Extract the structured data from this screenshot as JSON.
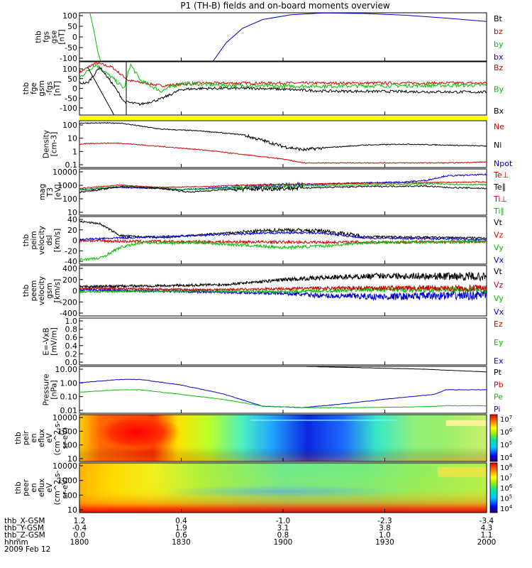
{
  "title": "P1 (TH-B) fields and on-board moments overview",
  "chart_data": {
    "type": "line",
    "title": "P1 (TH-B) fields and on-board moments overview",
    "time_ticks": [
      "1800",
      "1830",
      "1900",
      "1930",
      "2000"
    ],
    "panels": [
      {
        "id": "fgs",
        "ylabel": [
          "thb",
          "fgs",
          "gse",
          "[nT]"
        ],
        "ylim": [
          -100,
          100
        ],
        "log": false,
        "yticks": [
          "100",
          "50",
          "0",
          "-50",
          "-100"
        ],
        "legend": [
          {
            "label": "Bt",
            "color": "#000000"
          },
          {
            "label": "bz",
            "color": "#d00000"
          },
          {
            "label": "by",
            "color": "#00c000"
          },
          {
            "label": "bx",
            "color": "#0000d0"
          }
        ]
      },
      {
        "id": "fge",
        "ylabel": [
          "thb",
          "fge",
          "gsm",
          "-fgs",
          "[nT]"
        ],
        "ylim": [
          -125,
          100
        ],
        "log": false,
        "yticks": [
          "100",
          "50",
          "0",
          "-50",
          "-100"
        ],
        "legend": [
          {
            "label": "Bz",
            "color": "#d00000"
          },
          {
            "label": "By",
            "color": "#00c000"
          },
          {
            "label": "Bx",
            "color": "#000000"
          }
        ]
      },
      {
        "id": "density",
        "ylabel": [
          "Density",
          "[cm-3]"
        ],
        "ylim": [
          0.02,
          200
        ],
        "log": true,
        "yticks": [
          "100",
          "10",
          "1",
          "0.1"
        ],
        "legend": [
          {
            "label": "Ne",
            "color": "#d00000"
          },
          {
            "label": "Ni",
            "color": "#000000"
          },
          {
            "label": "Npot",
            "color": "#0000d0"
          }
        ]
      },
      {
        "id": "temp",
        "ylabel": [
          "mag",
          "T3",
          "[eV]"
        ],
        "ylim": [
          10,
          12000
        ],
        "log": true,
        "yticks": [
          "10000",
          "1000",
          "100",
          "10"
        ],
        "legend": [
          {
            "label": "Te⊥",
            "color": "#d00000"
          },
          {
            "label": "Te∥",
            "color": "#000000"
          },
          {
            "label": "Ti⊥",
            "color": "#d00000"
          },
          {
            "label": "Ti∥",
            "color": "#00c000"
          }
        ]
      },
      {
        "id": "vel_dsl",
        "ylabel": [
          "thb",
          "peim",
          "velocity",
          "dsl",
          "[km/s]"
        ],
        "ylim": [
          -40,
          40
        ],
        "log": false,
        "yticks": [
          "40",
          "20",
          "0",
          "-20",
          "-40"
        ],
        "legend": [
          {
            "label": "Vt",
            "color": "#000000"
          },
          {
            "label": "Vz",
            "color": "#d00000"
          },
          {
            "label": "Vy",
            "color": "#00c000"
          },
          {
            "label": "Vx",
            "color": "#0000d0"
          }
        ]
      },
      {
        "id": "vel_gsm",
        "ylabel": [
          "thb",
          "peem",
          "velocity",
          "gsm",
          "[km/s]"
        ],
        "ylim": [
          -400,
          400
        ],
        "log": false,
        "yticks": [
          "400",
          "200",
          "0",
          "-200",
          "-400"
        ],
        "legend": [
          {
            "label": "Vt",
            "color": "#000000"
          },
          {
            "label": "Vz",
            "color": "#d00000"
          },
          {
            "label": "Vy",
            "color": "#00c000"
          },
          {
            "label": "Vx",
            "color": "#0000d0"
          }
        ]
      },
      {
        "id": "efield",
        "ylabel": [
          "E=-VxB",
          "[mV/m]"
        ],
        "ylim": [
          0,
          1
        ],
        "log": false,
        "yticks": [
          "1.0",
          "0.8",
          "0.6",
          "0.4",
          "0.2",
          "0.0"
        ],
        "legend": [
          {
            "label": "Ez",
            "color": "#d00000"
          },
          {
            "label": "Ey",
            "color": "#00c000"
          },
          {
            "label": "Ex",
            "color": "#0000d0"
          }
        ]
      },
      {
        "id": "pressure",
        "ylabel": [
          "Pressure",
          "[nPa]"
        ],
        "ylim": [
          0.005,
          20
        ],
        "log": true,
        "yticks": [
          "10.00",
          "1.00",
          "0.10",
          "0.01"
        ],
        "legend": [
          {
            "label": "Pt",
            "color": "#000000"
          },
          {
            "label": "Pb",
            "color": "#d00000"
          },
          {
            "label": "Pe",
            "color": "#00c000"
          },
          {
            "label": "Pi",
            "color": "#0000d0"
          }
        ]
      },
      {
        "id": "peir_spec",
        "ylabel": [
          "thb",
          "peir",
          "en",
          "eflux",
          "eV",
          "(cm^2-s-",
          "sr-eV)"
        ],
        "ylim": [
          10,
          15000
        ],
        "log": true,
        "spectrogram": true,
        "yticks": [
          "10000",
          "1000",
          "100",
          "10"
        ],
        "colorbar_ticks": [
          "10^7",
          "10^6",
          "10^5",
          "10^4"
        ]
      },
      {
        "id": "peer_spec",
        "ylabel": [
          "thb",
          "peer",
          "en",
          "eflux",
          "eV",
          "(cm^2-s-",
          "sr-eV)"
        ],
        "ylim": [
          7,
          15000
        ],
        "log": true,
        "spectrogram": true,
        "yticks": [
          "10000",
          "1000",
          "100",
          "10"
        ],
        "colorbar_ticks": [
          "10^8",
          "10^7",
          "10^6",
          "10^5",
          "10^4"
        ]
      }
    ],
    "ephemeris": {
      "rows": [
        {
          "label": "thb_X-GSM",
          "values": [
            "1.2",
            "0.4",
            "-1.0",
            "-2.3",
            "-3.4"
          ]
        },
        {
          "label": "thb_Y-GSM",
          "values": [
            "-0.4",
            "1.9",
            "3.1",
            "3.8",
            "4.3"
          ]
        },
        {
          "label": "thb_Z-GSM",
          "values": [
            "0.0",
            "0.6",
            "0.8",
            "1.0",
            "1.1"
          ]
        },
        {
          "label": "hhmm",
          "values": [
            "1800",
            "1830",
            "1900",
            "1930",
            "2000"
          ]
        }
      ],
      "date": "2009 Feb 12"
    },
    "series_shapes": {
      "fgs": [
        {
          "color": "#00c000",
          "pts": [
            [
              0.02,
              1.2
            ],
            [
              0.025,
              1.05
            ],
            [
              0.035,
              0.3
            ],
            [
              0.045,
              -0.6
            ],
            [
              0.055,
              -1.2
            ]
          ]
        },
        {
          "color": "#0000d0",
          "pts": [
            [
              0.32,
              -1.2
            ],
            [
              0.36,
              -0.25
            ],
            [
              0.4,
              0.35
            ],
            [
              0.45,
              0.72
            ],
            [
              0.52,
              0.92
            ],
            [
              0.6,
              0.99
            ],
            [
              0.7,
              0.97
            ],
            [
              0.8,
              0.9
            ],
            [
              0.9,
              0.78
            ],
            [
              1.0,
              0.64
            ]
          ]
        }
      ]
    }
  }
}
